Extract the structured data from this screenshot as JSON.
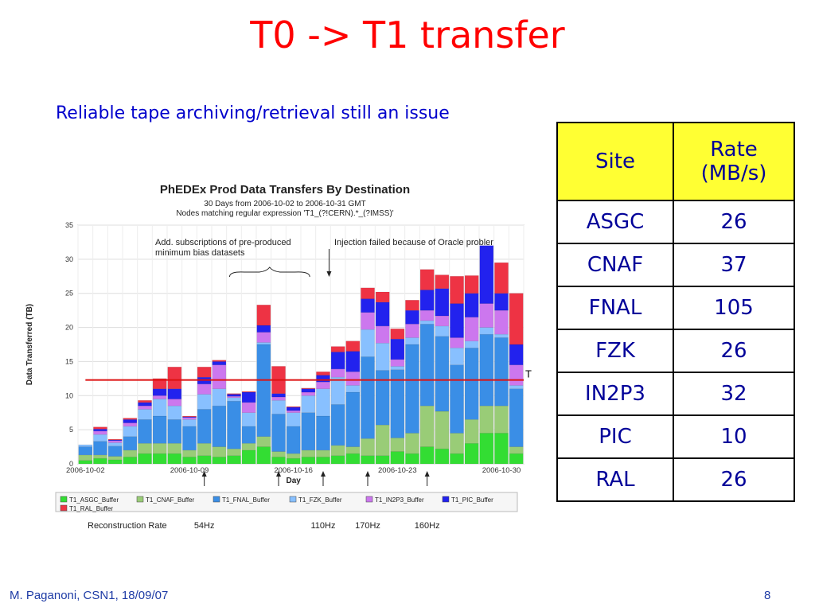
{
  "slide": {
    "title": "T0 -> T1 transfer",
    "subtitle": "Reliable tape archiving/retrieval still an issue",
    "footer_left": "M. Paganoni, CSN1, 18/09/07",
    "footer_right": "8"
  },
  "rate_table": {
    "headers": [
      "Site",
      "Rate (MB/s)"
    ],
    "rows": [
      {
        "site": "ASGC",
        "rate": "26"
      },
      {
        "site": "CNAF",
        "rate": "37"
      },
      {
        "site": "FNAL",
        "rate": "105"
      },
      {
        "site": "FZK",
        "rate": "26"
      },
      {
        "site": "IN2P3",
        "rate": "32"
      },
      {
        "site": "PIC",
        "rate": "10"
      },
      {
        "site": "RAL",
        "rate": "26"
      }
    ],
    "header_color": "#ffff33"
  },
  "chart_data": {
    "type": "bar",
    "stacked": true,
    "title": "PhEDEx Prod Data Transfers By Destination",
    "subtitle_lines": [
      "30 Days from 2006-10-02 to 2006-10-31 GMT",
      "Nodes matching regular expression 'T1_(?!CERN).*_(?IMSS)'"
    ],
    "xlabel": "Day",
    "ylabel": "Data Transferred (TB)",
    "ylim": [
      0,
      35
    ],
    "yticks": [
      "0",
      "5",
      "10",
      "15",
      "20",
      "25",
      "30",
      "35"
    ],
    "xtick_labels": [
      {
        "day": 0,
        "label": "2006-10-02"
      },
      {
        "day": 7,
        "label": "2006-10-09"
      },
      {
        "day": 14,
        "label": "2006-10-16"
      },
      {
        "day": 21,
        "label": "2006-10-23"
      },
      {
        "day": 28,
        "label": "2006-10-30"
      }
    ],
    "categories": [
      "10-02",
      "10-03",
      "10-04",
      "10-05",
      "10-06",
      "10-07",
      "10-08",
      "10-09",
      "10-10",
      "10-11",
      "10-12",
      "10-13",
      "10-14",
      "10-15",
      "10-16",
      "10-17",
      "10-18",
      "10-19",
      "10-20",
      "10-21",
      "10-22",
      "10-23",
      "10-24",
      "10-25",
      "10-26",
      "10-27",
      "10-28",
      "10-29",
      "10-30",
      "10-31"
    ],
    "series": [
      {
        "name": "T1_ASGC_Buffer",
        "color": "#33dd33",
        "values": [
          0.5,
          0.8,
          0.6,
          1.0,
          1.5,
          1.5,
          1.5,
          1.0,
          1.2,
          1.0,
          1.2,
          2.0,
          2.5,
          1.0,
          0.8,
          1.0,
          1.0,
          1.2,
          1.5,
          1.2,
          1.2,
          1.8,
          1.5,
          2.5,
          2.2,
          1.5,
          3.0,
          4.5,
          4.5,
          1.5
        ]
      },
      {
        "name": "T1_CNAF_Buffer",
        "color": "#99cc77",
        "values": [
          0.8,
          0.5,
          0.5,
          1.0,
          1.5,
          1.5,
          1.5,
          1.0,
          1.8,
          1.5,
          1.0,
          1.0,
          1.5,
          0.8,
          0.7,
          1.0,
          1.0,
          1.5,
          1.0,
          2.5,
          4.5,
          2.0,
          3.0,
          6.0,
          5.5,
          3.0,
          3.5,
          4.0,
          4.0,
          1.0
        ]
      },
      {
        "name": "T1_FNAL_Buffer",
        "color": "#3a8ee6",
        "values": [
          1.2,
          2.0,
          1.5,
          2.0,
          3.5,
          4.0,
          3.5,
          3.5,
          5.0,
          6.0,
          7.0,
          2.5,
          13.5,
          5.5,
          4.0,
          5.5,
          5.0,
          6.0,
          8.0,
          12.0,
          8.0,
          10.0,
          13.0,
          12.0,
          11.0,
          10.0,
          10.5,
          10.5,
          10.0,
          8.5
        ]
      },
      {
        "name": "T1_FZK_Buffer",
        "color": "#88c0ff",
        "values": [
          0.3,
          1.0,
          0.5,
          1.5,
          1.5,
          2.5,
          2.0,
          1.0,
          2.2,
          2.5,
          0.5,
          2.0,
          0.3,
          2.0,
          2.0,
          2.5,
          4.0,
          4.0,
          1.0,
          4.0,
          4.0,
          0.5,
          1.0,
          0.5,
          1.5,
          2.5,
          1.0,
          1.0,
          0.5,
          0.5
        ]
      },
      {
        "name": "T1_IN2P3_Buffer",
        "color": "#cc77ee",
        "values": [
          0.0,
          0.5,
          0.3,
          0.5,
          0.5,
          0.5,
          1.0,
          0.3,
          1.5,
          3.5,
          0.2,
          1.5,
          1.5,
          0.5,
          0.3,
          0.5,
          1.0,
          1.2,
          2.0,
          2.5,
          2.5,
          1.0,
          2.0,
          1.5,
          1.5,
          1.5,
          3.5,
          3.5,
          3.5,
          3.0
        ]
      },
      {
        "name": "T1_PIC_Buffer",
        "color": "#2222ee",
        "values": [
          0.0,
          0.3,
          0.1,
          0.5,
          0.5,
          1.0,
          1.5,
          0.1,
          1.0,
          0.5,
          0.3,
          1.5,
          1.0,
          0.5,
          0.5,
          0.5,
          1.0,
          2.5,
          3.0,
          2.0,
          3.5,
          3.0,
          2.0,
          3.0,
          4.0,
          5.0,
          3.5,
          8.5,
          2.5,
          3.0
        ]
      },
      {
        "name": "T1_RAL_Buffer",
        "color": "#ee3344",
        "values": [
          0.0,
          0.3,
          0.1,
          0.2,
          0.3,
          1.5,
          3.2,
          0.1,
          1.5,
          0.2,
          0.1,
          0.1,
          3.0,
          4.0,
          0.1,
          0.1,
          0.5,
          0.8,
          1.5,
          1.6,
          1.5,
          1.5,
          1.5,
          3.0,
          2.0,
          4.0,
          2.6,
          0.0,
          4.5,
          7.5
        ]
      }
    ],
    "rate_line_value": 12.3,
    "rate_line_label": "T",
    "annotations": [
      {
        "text": "Add. subscriptions of pre-produced",
        "line2": "minimum bias datasets"
      },
      {
        "text": "Injection failed because of Oracle probler"
      }
    ],
    "markers": [
      {
        "day": 8,
        "rate": "54Hz"
      },
      {
        "day": 13,
        "rate": ""
      },
      {
        "day": 16,
        "rate": "110Hz"
      },
      {
        "day": 19,
        "rate": "170Hz"
      },
      {
        "day": 23,
        "rate": "160Hz"
      }
    ],
    "reconstruction_rate_label": "Reconstruction Rate"
  }
}
